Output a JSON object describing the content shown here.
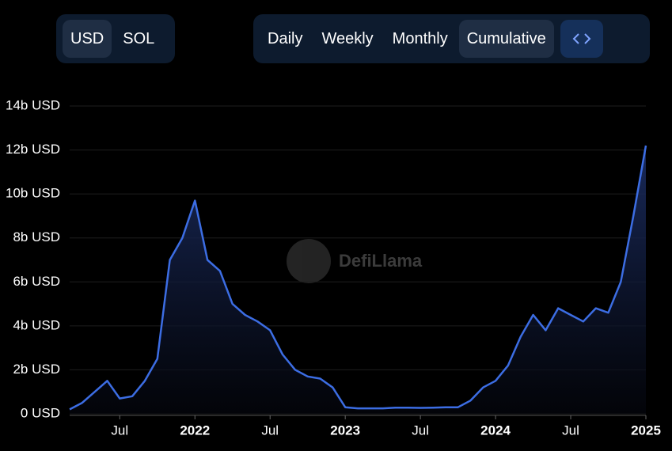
{
  "controls": {
    "currency": [
      "USD",
      "SOL"
    ],
    "period": [
      "Daily",
      "Weekly",
      "Monthly",
      "Cumulative"
    ]
  },
  "watermark": "DefiLlama",
  "chart_data": {
    "type": "area",
    "color": "#3c6de3",
    "categories": [
      null,
      null,
      null,
      null,
      "Jul",
      null,
      null,
      null,
      null,
      null,
      "2022",
      null,
      null,
      null,
      null,
      null,
      "Jul",
      null,
      null,
      null,
      null,
      null,
      "2023",
      null,
      null,
      null,
      null,
      null,
      "Jul",
      null,
      null,
      null,
      null,
      null,
      "2024",
      null,
      null,
      null,
      null,
      null,
      "Jul",
      null,
      null,
      null,
      null,
      null,
      "2025"
    ],
    "values": [
      0.2,
      0.5,
      1.0,
      1.5,
      0.7,
      0.8,
      1.5,
      2.5,
      7.0,
      8.0,
      9.7,
      7.0,
      6.5,
      5.0,
      4.5,
      4.2,
      3.8,
      2.7,
      2.0,
      1.7,
      1.6,
      1.2,
      0.3,
      0.25,
      0.25,
      0.25,
      0.28,
      0.28,
      0.27,
      0.28,
      0.3,
      0.3,
      0.6,
      1.2,
      1.5,
      2.2,
      3.5,
      4.5,
      3.8,
      4.8,
      4.5,
      4.2,
      4.8,
      4.6,
      6.0,
      9.0,
      12.2
    ],
    "ylim": [
      0,
      14
    ],
    "yticks": [
      {
        "value": 0,
        "label": "0 USD"
      },
      {
        "value": 2,
        "label": "2b USD"
      },
      {
        "value": 4,
        "label": "4b USD"
      },
      {
        "value": 6,
        "label": "6b USD"
      },
      {
        "value": 8,
        "label": "8b USD"
      },
      {
        "value": 10,
        "label": "10b USD"
      },
      {
        "value": 12,
        "label": "12b USD"
      },
      {
        "value": 14,
        "label": "14b USD"
      }
    ],
    "grid": true
  }
}
